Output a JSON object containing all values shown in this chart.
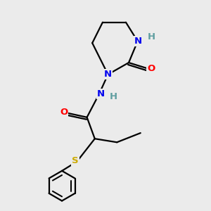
{
  "bg_color": "#ebebeb",
  "atom_colors": {
    "N": "#0000ee",
    "O": "#ff0000",
    "S": "#ccaa00",
    "C": "#000000",
    "H": "#5f9ea0"
  },
  "bond_color": "#000000",
  "bond_width": 1.6,
  "font_size": 9.5
}
